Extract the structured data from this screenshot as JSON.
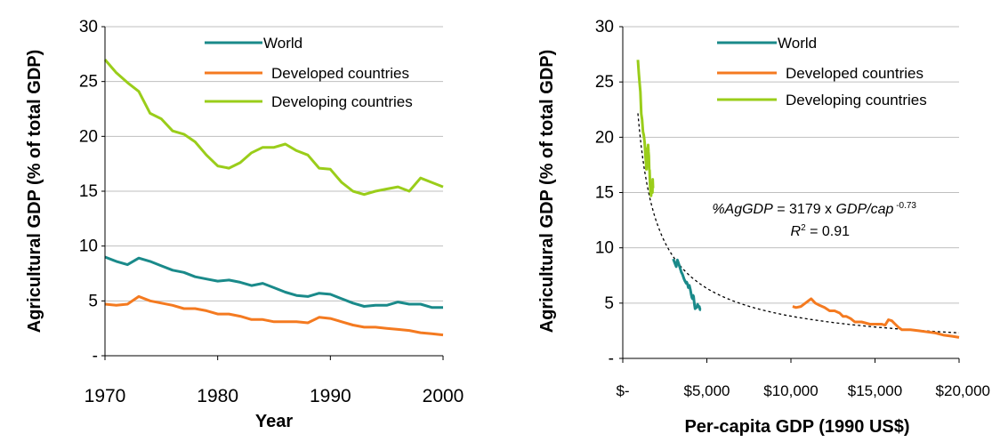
{
  "colors": {
    "world": "#1a8a8a",
    "developed": "#f47a20",
    "developing": "#9acd1a",
    "trend": "#000000"
  },
  "chart_data": [
    {
      "type": "line",
      "xlabel": "Year",
      "ylabel": "Agricultural GDP (% of total GDP)",
      "xlim": [
        1970,
        2000
      ],
      "ylim": [
        0,
        30
      ],
      "x_ticks": [
        1970,
        1980,
        1990,
        2000
      ],
      "y_ticks": [
        0,
        5,
        10,
        15,
        20,
        25,
        30
      ],
      "y_tick_labels": [
        "-",
        "5",
        "10",
        "15",
        "20",
        "25",
        "30"
      ],
      "grid": true,
      "legend": "top-right",
      "x": [
        1970,
        1971,
        1972,
        1973,
        1974,
        1975,
        1976,
        1977,
        1978,
        1979,
        1980,
        1981,
        1982,
        1983,
        1984,
        1985,
        1986,
        1987,
        1988,
        1989,
        1990,
        1991,
        1992,
        1993,
        1994,
        1995,
        1996,
        1997,
        1998,
        1999,
        2000
      ],
      "series": [
        {
          "name": "World",
          "color_key": "world",
          "values": [
            9.0,
            8.6,
            8.3,
            8.9,
            8.6,
            8.2,
            7.8,
            7.6,
            7.2,
            7.0,
            6.8,
            6.9,
            6.7,
            6.4,
            6.6,
            6.2,
            5.8,
            5.5,
            5.4,
            5.7,
            5.6,
            5.2,
            4.8,
            4.5,
            4.6,
            4.6,
            4.9,
            4.7,
            4.7,
            4.4,
            4.4
          ]
        },
        {
          "name": "Developed countries",
          "color_key": "developed",
          "values": [
            4.7,
            4.6,
            4.7,
            5.4,
            5.0,
            4.8,
            4.6,
            4.3,
            4.3,
            4.1,
            3.8,
            3.8,
            3.6,
            3.3,
            3.3,
            3.1,
            3.1,
            3.1,
            3.0,
            3.5,
            3.4,
            3.1,
            2.8,
            2.6,
            2.6,
            2.5,
            2.4,
            2.3,
            2.1,
            2.0,
            1.9
          ]
        },
        {
          "name": "Developing countries",
          "color_key": "developing",
          "values": [
            27.0,
            25.8,
            24.9,
            24.1,
            22.1,
            21.6,
            20.5,
            20.2,
            19.5,
            18.3,
            17.3,
            17.1,
            17.6,
            18.5,
            19.0,
            19.0,
            19.3,
            18.7,
            18.3,
            17.1,
            17.0,
            15.8,
            15.0,
            14.7,
            15.0,
            15.2,
            15.4,
            15.0,
            16.2,
            15.8,
            15.4
          ]
        }
      ]
    },
    {
      "type": "line",
      "xlabel": "Per-capita GDP (1990 US$)",
      "ylabel": "Agricultural GDP (% of total GDP)",
      "xlim": [
        0,
        20000
      ],
      "ylim": [
        0,
        30
      ],
      "x_ticks": [
        0,
        5000,
        10000,
        15000,
        20000
      ],
      "x_tick_labels": [
        "$-",
        "$5,000",
        "$10,000",
        "$15,000",
        "$20,000"
      ],
      "y_ticks": [
        0,
        5,
        10,
        15,
        20,
        25,
        30
      ],
      "y_tick_labels": [
        "-",
        "5",
        "10",
        "15",
        "20",
        "25",
        "30"
      ],
      "grid": true,
      "legend": "top-right",
      "series": [
        {
          "name": "World",
          "color_key": "world",
          "points": [
            [
              3000,
              9.0
            ],
            [
              3100,
              8.6
            ],
            [
              3180,
              8.3
            ],
            [
              3250,
              8.9
            ],
            [
              3320,
              8.6
            ],
            [
              3400,
              8.2
            ],
            [
              3480,
              7.8
            ],
            [
              3550,
              7.6
            ],
            [
              3640,
              7.2
            ],
            [
              3700,
              7.0
            ],
            [
              3770,
              6.8
            ],
            [
              3800,
              6.9
            ],
            [
              3850,
              6.7
            ],
            [
              3900,
              6.4
            ],
            [
              3960,
              6.6
            ],
            [
              4020,
              6.2
            ],
            [
              4070,
              5.8
            ],
            [
              4110,
              5.5
            ],
            [
              4150,
              5.4
            ],
            [
              4180,
              5.7
            ],
            [
              4210,
              5.6
            ],
            [
              4240,
              5.2
            ],
            [
              4270,
              4.8
            ],
            [
              4300,
              4.5
            ],
            [
              4350,
              4.6
            ],
            [
              4400,
              4.6
            ],
            [
              4450,
              4.9
            ],
            [
              4500,
              4.7
            ],
            [
              4550,
              4.7
            ],
            [
              4600,
              4.4
            ],
            [
              4650,
              4.4
            ]
          ]
        },
        {
          "name": "Developed countries",
          "color_key": "developed",
          "points": [
            [
              10100,
              4.7
            ],
            [
              10300,
              4.6
            ],
            [
              10600,
              4.7
            ],
            [
              11200,
              5.4
            ],
            [
              11450,
              5.0
            ],
            [
              11700,
              4.8
            ],
            [
              12000,
              4.6
            ],
            [
              12300,
              4.3
            ],
            [
              12600,
              4.3
            ],
            [
              12900,
              4.1
            ],
            [
              13100,
              3.8
            ],
            [
              13300,
              3.8
            ],
            [
              13550,
              3.6
            ],
            [
              13800,
              3.3
            ],
            [
              14200,
              3.3
            ],
            [
              14700,
              3.1
            ],
            [
              15100,
              3.1
            ],
            [
              15400,
              3.1
            ],
            [
              15600,
              3.0
            ],
            [
              15800,
              3.5
            ],
            [
              16000,
              3.4
            ],
            [
              16200,
              3.1
            ],
            [
              16400,
              2.8
            ],
            [
              16600,
              2.6
            ],
            [
              17100,
              2.6
            ],
            [
              17600,
              2.5
            ],
            [
              18100,
              2.4
            ],
            [
              18600,
              2.3
            ],
            [
              19100,
              2.1
            ],
            [
              19600,
              2.0
            ],
            [
              20000,
              1.9
            ]
          ]
        },
        {
          "name": "Developing countries",
          "color_key": "developing",
          "points": [
            [
              900,
              27.0
            ],
            [
              950,
              25.8
            ],
            [
              1000,
              24.9
            ],
            [
              1050,
              24.1
            ],
            [
              1100,
              22.1
            ],
            [
              1150,
              21.6
            ],
            [
              1200,
              20.5
            ],
            [
              1250,
              20.2
            ],
            [
              1300,
              19.5
            ],
            [
              1350,
              18.3
            ],
            [
              1400,
              17.3
            ],
            [
              1400,
              17.1
            ],
            [
              1420,
              17.6
            ],
            [
              1450,
              18.5
            ],
            [
              1470,
              19.0
            ],
            [
              1490,
              19.0
            ],
            [
              1510,
              19.3
            ],
            [
              1530,
              18.7
            ],
            [
              1550,
              18.3
            ],
            [
              1570,
              17.1
            ],
            [
              1590,
              17.0
            ],
            [
              1620,
              15.8
            ],
            [
              1650,
              15.0
            ],
            [
              1680,
              14.7
            ],
            [
              1700,
              15.0
            ],
            [
              1720,
              15.2
            ],
            [
              1740,
              15.4
            ],
            [
              1760,
              15.0
            ],
            [
              1780,
              16.2
            ],
            [
              1790,
              15.8
            ],
            [
              1800,
              15.4
            ]
          ]
        }
      ],
      "trendline": {
        "equation_parts": [
          "%AgGDP",
          " = 3179 x ",
          "GDP/cap",
          " -0.73"
        ],
        "r2_parts": [
          "R",
          "2",
          " = 0.91"
        ],
        "a": 3179,
        "b": -0.73,
        "x_range": [
          900,
          20000
        ]
      }
    }
  ]
}
